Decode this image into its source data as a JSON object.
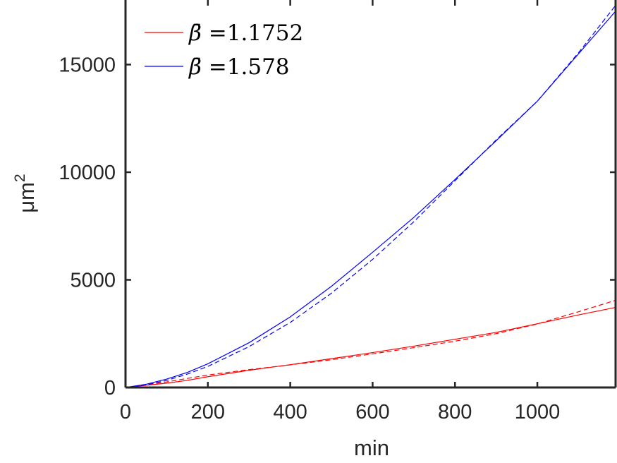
{
  "chart_data": {
    "type": "line",
    "title": "",
    "xlabel": "min",
    "ylabel": "μm",
    "ylabel_superscript": "2",
    "xlim": [
      0,
      1190
    ],
    "ylim": [
      0,
      18000
    ],
    "xticks": [
      0,
      200,
      400,
      600,
      800,
      1000
    ],
    "xtick_labels": [
      "0",
      "200",
      "400",
      "600",
      "800",
      "1000"
    ],
    "yticks": [
      0,
      5000,
      10000,
      15000
    ],
    "ytick_labels": [
      "0",
      "5000",
      "10000",
      "15000"
    ],
    "grid": false,
    "legend_placement": "top-left",
    "legend": [
      {
        "prefix": "β̄ =",
        "value": "1.1752",
        "color": "#ff0000"
      },
      {
        "prefix": "β̄ =",
        "value": "1.578",
        "color": "#0000ff"
      }
    ],
    "series": [
      {
        "name": "β̄ =1.1752",
        "style": "solid",
        "color": "#ff0000",
        "x": [
          0,
          50,
          100,
          150,
          200,
          300,
          400,
          500,
          600,
          700,
          800,
          900,
          1000,
          1100,
          1190
        ],
        "y": [
          0,
          100,
          200,
          330,
          500,
          800,
          1060,
          1340,
          1620,
          1920,
          2240,
          2560,
          2960,
          3370,
          3720
        ]
      },
      {
        "name": "",
        "style": "dashed",
        "color": "#ff0000",
        "x": [
          0,
          50,
          100,
          150,
          200,
          300,
          400,
          500,
          600,
          700,
          800,
          900,
          1000,
          1100,
          1190
        ],
        "y": [
          0,
          120,
          260,
          420,
          580,
          830,
          1050,
          1290,
          1560,
          1850,
          2150,
          2500,
          2950,
          3520,
          4050
        ]
      },
      {
        "name": "β̄ =1.578",
        "style": "solid",
        "color": "#0000ff",
        "x": [
          0,
          50,
          100,
          150,
          200,
          300,
          400,
          500,
          600,
          700,
          800,
          900,
          1000,
          1100,
          1190
        ],
        "y": [
          0,
          150,
          390,
          700,
          1100,
          2080,
          3280,
          4700,
          6280,
          7900,
          9660,
          11460,
          13300,
          15500,
          17480
        ]
      },
      {
        "name": "",
        "style": "dashed",
        "color": "#0000ff",
        "x": [
          0,
          50,
          100,
          150,
          200,
          300,
          400,
          500,
          600,
          700,
          800,
          900,
          1000,
          1100,
          1190
        ],
        "y": [
          0,
          120,
          330,
          620,
          980,
          1900,
          3020,
          4380,
          5950,
          7700,
          9600,
          11500,
          13300,
          15550,
          17750
        ]
      }
    ]
  }
}
